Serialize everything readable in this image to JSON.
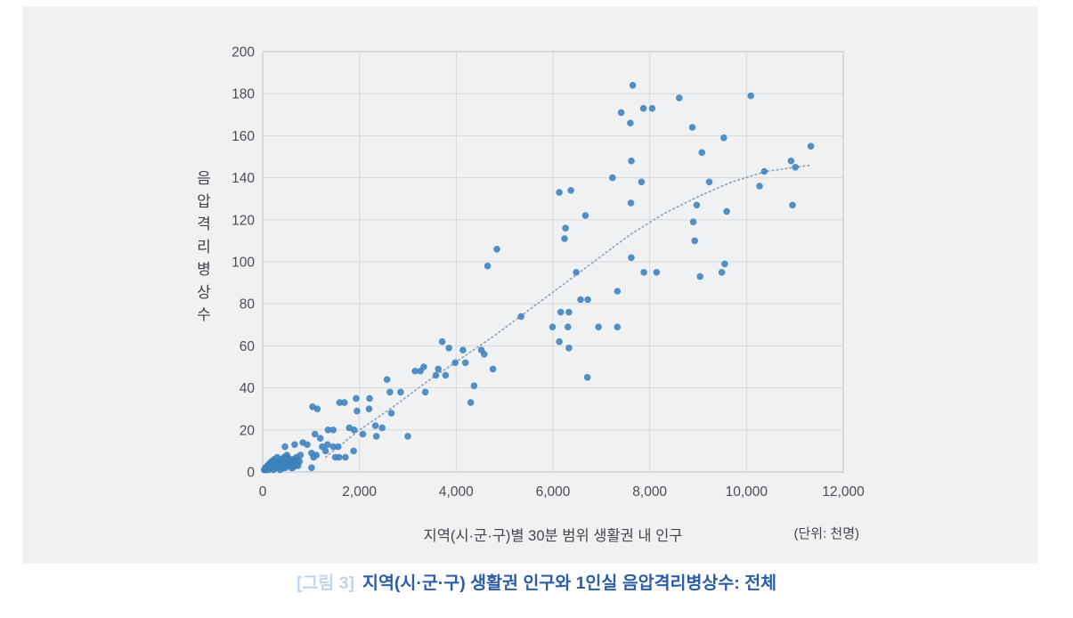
{
  "figure": {
    "caption_prefix": "[그림 3]",
    "caption": "지역(시·군·구) 생활권 인구와 1인실 음압격리병상수: 전체"
  },
  "chart_data": {
    "type": "scatter",
    "title": "지역(시·군·구) 생활권 인구와 1인실 음압격리병상수: 전체",
    "xlabel": "지역(시·군·구)별 30분 범위 생활권 내 인구",
    "ylabel": "음압격리병상수",
    "unit_note": "(단위: 천명)",
    "xlim": [
      0,
      12000
    ],
    "ylim": [
      0,
      200
    ],
    "x_ticks": [
      0,
      2000,
      4000,
      6000,
      8000,
      10000,
      12000
    ],
    "y_ticks": [
      0,
      20,
      40,
      60,
      80,
      100,
      120,
      140,
      160,
      180,
      200
    ],
    "grid": true,
    "legend": "none",
    "colors": {
      "point": "#3e81bd",
      "trend": "#92a7bb",
      "gridline": "#d6d8da",
      "plot_border": "#c8cbce",
      "tick_text": "#4a4d52",
      "background": "#eff1f3"
    },
    "points": [
      [
        30,
        1
      ],
      [
        55,
        2
      ],
      [
        80,
        1
      ],
      [
        100,
        3
      ],
      [
        120,
        1
      ],
      [
        140,
        4
      ],
      [
        160,
        2
      ],
      [
        180,
        5
      ],
      [
        200,
        3
      ],
      [
        220,
        1
      ],
      [
        240,
        6
      ],
      [
        260,
        4
      ],
      [
        280,
        2
      ],
      [
        300,
        7
      ],
      [
        320,
        5
      ],
      [
        340,
        3
      ],
      [
        360,
        1
      ],
      [
        380,
        6
      ],
      [
        400,
        4
      ],
      [
        420,
        2
      ],
      [
        440,
        7
      ],
      [
        460,
        5
      ],
      [
        480,
        3
      ],
      [
        500,
        8
      ],
      [
        520,
        5
      ],
      [
        545,
        3
      ],
      [
        570,
        6
      ],
      [
        595,
        4
      ],
      [
        620,
        2
      ],
      [
        645,
        6
      ],
      [
        670,
        4
      ],
      [
        700,
        7
      ],
      [
        730,
        3
      ],
      [
        760,
        5
      ],
      [
        60,
        1
      ],
      [
        110,
        2
      ],
      [
        165,
        3
      ],
      [
        215,
        5
      ],
      [
        265,
        3
      ],
      [
        315,
        2
      ],
      [
        365,
        5
      ],
      [
        415,
        6
      ],
      [
        465,
        2
      ],
      [
        515,
        7
      ],
      [
        565,
        5
      ],
      [
        615,
        3
      ],
      [
        665,
        6
      ],
      [
        715,
        5
      ],
      [
        90,
        2
      ],
      [
        190,
        4
      ],
      [
        290,
        5
      ],
      [
        390,
        3
      ],
      [
        490,
        6
      ],
      [
        590,
        2
      ],
      [
        690,
        3
      ],
      [
        460,
        12
      ],
      [
        660,
        13
      ],
      [
        780,
        8
      ],
      [
        830,
        14
      ],
      [
        920,
        13
      ],
      [
        1010,
        2
      ],
      [
        1010,
        9
      ],
      [
        1050,
        7
      ],
      [
        1080,
        18
      ],
      [
        1110,
        8
      ],
      [
        1190,
        16
      ],
      [
        1030,
        31
      ],
      [
        1130,
        30
      ],
      [
        1230,
        12
      ],
      [
        1300,
        10
      ],
      [
        1340,
        13
      ],
      [
        1460,
        12
      ],
      [
        1500,
        7
      ],
      [
        1560,
        12
      ],
      [
        1580,
        7
      ],
      [
        1710,
        7
      ],
      [
        1880,
        10
      ],
      [
        1350,
        20
      ],
      [
        1460,
        20
      ],
      [
        1590,
        33
      ],
      [
        1690,
        33
      ],
      [
        1790,
        21
      ],
      [
        1890,
        20
      ],
      [
        1930,
        35
      ],
      [
        1950,
        29
      ],
      [
        2070,
        18
      ],
      [
        2200,
        30
      ],
      [
        2210,
        35
      ],
      [
        2330,
        22
      ],
      [
        2470,
        21
      ],
      [
        2350,
        17
      ],
      [
        2570,
        44
      ],
      [
        2630,
        38
      ],
      [
        2850,
        38
      ],
      [
        2660,
        28
      ],
      [
        3000,
        17
      ],
      [
        3150,
        48
      ],
      [
        3260,
        48
      ],
      [
        3330,
        50
      ],
      [
        3360,
        38
      ],
      [
        3580,
        46
      ],
      [
        3630,
        49
      ],
      [
        3780,
        46
      ],
      [
        3710,
        62
      ],
      [
        3850,
        59
      ],
      [
        3980,
        52
      ],
      [
        4140,
        58
      ],
      [
        4190,
        52
      ],
      [
        4300,
        33
      ],
      [
        4370,
        41
      ],
      [
        4520,
        58
      ],
      [
        4580,
        56
      ],
      [
        4760,
        49
      ],
      [
        4650,
        98
      ],
      [
        4840,
        106
      ],
      [
        5340,
        74
      ],
      [
        5990,
        69
      ],
      [
        6130,
        62
      ],
      [
        6130,
        133
      ],
      [
        6160,
        76
      ],
      [
        6240,
        111
      ],
      [
        6260,
        116
      ],
      [
        6310,
        69
      ],
      [
        6330,
        59
      ],
      [
        6330,
        76
      ],
      [
        6370,
        134
      ],
      [
        6480,
        95
      ],
      [
        6570,
        82
      ],
      [
        6670,
        122
      ],
      [
        6710,
        45
      ],
      [
        6720,
        82
      ],
      [
        6940,
        69
      ],
      [
        7230,
        140
      ],
      [
        7330,
        69
      ],
      [
        7330,
        86
      ],
      [
        7410,
        171
      ],
      [
        7600,
        166
      ],
      [
        7610,
        128
      ],
      [
        7620,
        102
      ],
      [
        7620,
        148
      ],
      [
        7650,
        184
      ],
      [
        7830,
        138
      ],
      [
        7870,
        173
      ],
      [
        7880,
        95
      ],
      [
        8050,
        173
      ],
      [
        8140,
        95
      ],
      [
        8610,
        178
      ],
      [
        8880,
        164
      ],
      [
        8900,
        119
      ],
      [
        8930,
        110
      ],
      [
        8970,
        127
      ],
      [
        9040,
        93
      ],
      [
        9080,
        152
      ],
      [
        9230,
        138
      ],
      [
        9490,
        95
      ],
      [
        9530,
        159
      ],
      [
        9550,
        99
      ],
      [
        9590,
        124
      ],
      [
        10090,
        179
      ],
      [
        10270,
        136
      ],
      [
        10370,
        143
      ],
      [
        10920,
        148
      ],
      [
        10950,
        127
      ],
      [
        11010,
        145
      ],
      [
        11330,
        155
      ]
    ],
    "trend": [
      [
        1300,
        7
      ],
      [
        2000,
        20
      ],
      [
        2700,
        31
      ],
      [
        3400,
        43
      ],
      [
        4100,
        54
      ],
      [
        4800,
        65
      ],
      [
        5500,
        77
      ],
      [
        6200,
        89
      ],
      [
        6900,
        101
      ],
      [
        7600,
        113
      ],
      [
        8300,
        123
      ],
      [
        9000,
        131
      ],
      [
        9700,
        138
      ],
      [
        10400,
        143
      ],
      [
        11000,
        145
      ],
      [
        11340,
        146
      ]
    ]
  }
}
